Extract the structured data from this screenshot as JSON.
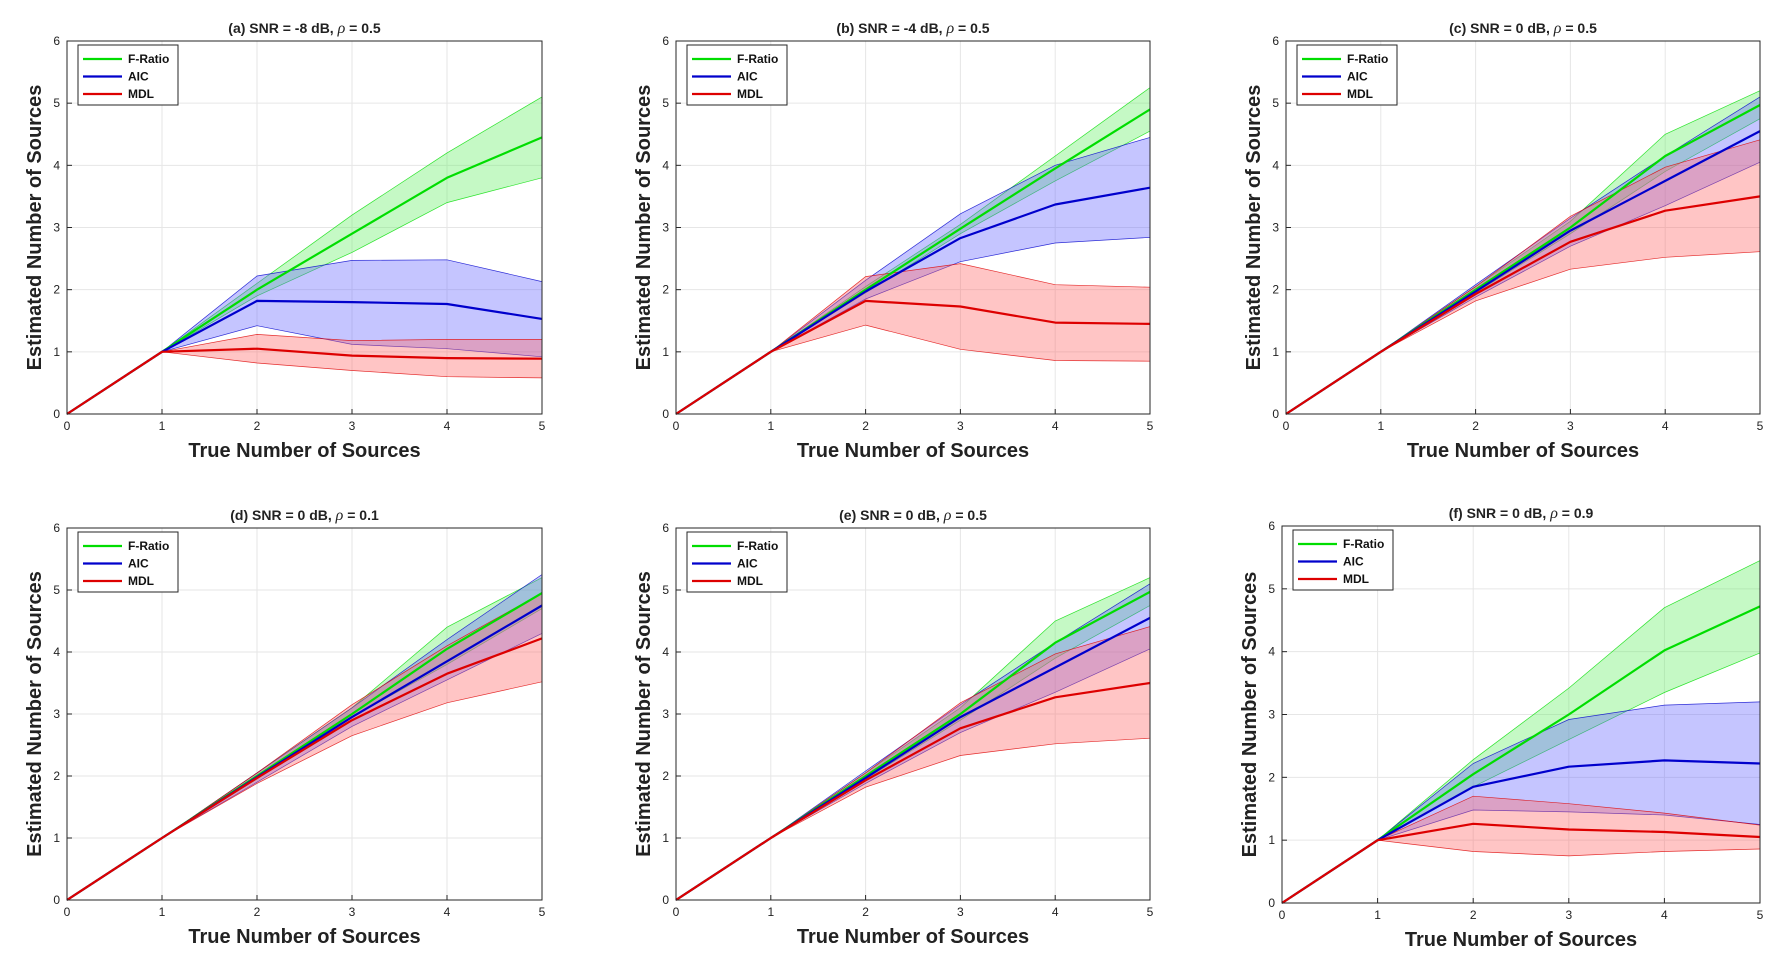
{
  "figure": {
    "x_label": "True Number of Sources",
    "y_label": "Estimated Number of Sources",
    "legend": [
      "F-Ratio",
      "AIC",
      "MDL"
    ],
    "colors": {
      "F-Ratio": "#00dd00",
      "AIC": "#0000cc",
      "MDL": "#dd0000"
    },
    "band_colors": {
      "F-Ratio": "#66ee66",
      "AIC": "#6666ff",
      "MDL": "#ff6666"
    }
  },
  "chart_data": [
    {
      "type": "line",
      "title_prefix": "(a) SNR = -8 dB, ",
      "title_symbol": "ρ",
      "title_suffix": " = 0.5",
      "xlabel": "True Number of Sources",
      "ylabel": "Estimated Number of Sources",
      "x": [
        0,
        1,
        2,
        3,
        4,
        5
      ],
      "xlim": [
        0,
        5
      ],
      "ylim": [
        0,
        6
      ],
      "xticks": [
        "0",
        "1",
        "2",
        "3",
        "4",
        "5"
      ],
      "yticks": [
        "0",
        "1",
        "2",
        "3",
        "4",
        "5",
        "6"
      ],
      "series": [
        {
          "name": "F-Ratio",
          "mean": [
            0,
            1,
            2.0,
            2.9,
            3.8,
            4.45
          ],
          "lower": [
            0,
            1,
            1.9,
            2.6,
            3.4,
            3.8
          ],
          "upper": [
            0,
            1,
            2.1,
            3.2,
            4.2,
            5.1
          ]
        },
        {
          "name": "AIC",
          "mean": [
            0,
            1,
            1.82,
            1.8,
            1.77,
            1.53
          ],
          "lower": [
            0,
            1,
            1.42,
            1.12,
            1.05,
            0.92
          ],
          "upper": [
            0,
            1,
            2.22,
            2.47,
            2.48,
            2.13
          ]
        },
        {
          "name": "MDL",
          "mean": [
            0,
            1,
            1.05,
            0.94,
            0.9,
            0.89
          ],
          "lower": [
            0,
            1,
            0.82,
            0.7,
            0.6,
            0.58
          ],
          "upper": [
            0,
            1,
            1.28,
            1.18,
            1.2,
            1.2
          ]
        }
      ]
    },
    {
      "type": "line",
      "title_prefix": "(b) SNR = -4 dB, ",
      "title_symbol": "ρ",
      "title_suffix": " = 0.5",
      "xlabel": "True Number of Sources",
      "ylabel": "Estimated Number of Sources",
      "x": [
        0,
        1,
        2,
        3,
        4,
        5
      ],
      "xlim": [
        0,
        5
      ],
      "ylim": [
        0,
        6
      ],
      "xticks": [
        "0",
        "1",
        "2",
        "3",
        "4",
        "5"
      ],
      "yticks": [
        "0",
        "1",
        "2",
        "3",
        "4",
        "5",
        "6"
      ],
      "series": [
        {
          "name": "F-Ratio",
          "mean": [
            0,
            1,
            2.0,
            2.98,
            3.95,
            4.9
          ],
          "lower": [
            0,
            1,
            1.95,
            2.9,
            3.75,
            4.55
          ],
          "upper": [
            0,
            1,
            2.05,
            3.05,
            4.15,
            5.25
          ]
        },
        {
          "name": "AIC",
          "mean": [
            0,
            1,
            1.97,
            2.83,
            3.37,
            3.64
          ],
          "lower": [
            0,
            1,
            1.85,
            2.45,
            2.75,
            2.84
          ],
          "upper": [
            0,
            1,
            2.15,
            3.22,
            4.0,
            4.45
          ]
        },
        {
          "name": "MDL",
          "mean": [
            0,
            1,
            1.82,
            1.73,
            1.47,
            1.45
          ],
          "lower": [
            0,
            1,
            1.43,
            1.04,
            0.86,
            0.85
          ],
          "upper": [
            0,
            1,
            2.21,
            2.42,
            2.08,
            2.04
          ]
        }
      ]
    },
    {
      "type": "line",
      "title_prefix": "(c) SNR = 0 dB, ",
      "title_symbol": "ρ",
      "title_suffix": " = 0.5",
      "xlabel": "True Number of Sources",
      "ylabel": "Estimated Number of Sources",
      "x": [
        0,
        1,
        2,
        3,
        4,
        5
      ],
      "xlim": [
        0,
        5
      ],
      "ylim": [
        0,
        6
      ],
      "xticks": [
        "0",
        "1",
        "2",
        "3",
        "4",
        "5"
      ],
      "yticks": [
        "0",
        "1",
        "2",
        "3",
        "4",
        "5",
        "6"
      ],
      "series": [
        {
          "name": "F-Ratio",
          "mean": [
            0,
            1,
            2.0,
            3.0,
            4.15,
            4.97
          ],
          "lower": [
            0,
            1,
            1.95,
            2.9,
            3.9,
            4.75
          ],
          "upper": [
            0,
            1,
            2.05,
            3.1,
            4.5,
            5.2
          ]
        },
        {
          "name": "AIC",
          "mean": [
            0,
            1,
            1.97,
            2.95,
            3.75,
            4.55
          ],
          "lower": [
            0,
            1,
            1.88,
            2.7,
            3.35,
            4.05
          ],
          "upper": [
            0,
            1,
            2.08,
            3.15,
            4.15,
            5.1
          ]
        },
        {
          "name": "MDL",
          "mean": [
            0,
            1,
            1.93,
            2.77,
            3.27,
            3.5
          ],
          "lower": [
            0,
            1,
            1.82,
            2.33,
            2.52,
            2.61
          ],
          "upper": [
            0,
            1,
            2.05,
            3.18,
            3.97,
            4.41
          ]
        }
      ]
    },
    {
      "type": "line",
      "title_prefix": "(d) SNR = 0 dB, ",
      "title_symbol": "ρ",
      "title_suffix": " = 0.1",
      "xlabel": "True Number of Sources",
      "ylabel": "Estimated Number of Sources",
      "x": [
        0,
        1,
        2,
        3,
        4,
        5
      ],
      "xlim": [
        0,
        5
      ],
      "ylim": [
        0,
        6
      ],
      "xticks": [
        "0",
        "1",
        "2",
        "3",
        "4",
        "5"
      ],
      "yticks": [
        "0",
        "1",
        "2",
        "3",
        "4",
        "5",
        "6"
      ],
      "series": [
        {
          "name": "F-Ratio",
          "mean": [
            0,
            1,
            2.0,
            3.0,
            4.05,
            4.95
          ],
          "lower": [
            0,
            1,
            1.95,
            2.95,
            3.8,
            4.7
          ],
          "upper": [
            0,
            1,
            2.05,
            3.1,
            4.4,
            5.2
          ]
        },
        {
          "name": "AIC",
          "mean": [
            0,
            1,
            1.98,
            2.95,
            3.85,
            4.75
          ],
          "lower": [
            0,
            1,
            1.9,
            2.8,
            3.55,
            4.3
          ],
          "upper": [
            0,
            1,
            2.05,
            3.1,
            4.2,
            5.25
          ]
        },
        {
          "name": "MDL",
          "mean": [
            0,
            1,
            1.97,
            2.9,
            3.65,
            4.22
          ],
          "lower": [
            0,
            1,
            1.88,
            2.65,
            3.18,
            3.52
          ],
          "upper": [
            0,
            1,
            2.05,
            3.15,
            4.1,
            4.95
          ]
        }
      ]
    },
    {
      "type": "line",
      "title_prefix": "(e) SNR = 0 dB, ",
      "title_symbol": "ρ",
      "title_suffix": " = 0.5",
      "xlabel": "True Number of Sources",
      "ylabel": "Estimated Number of Sources",
      "x": [
        0,
        1,
        2,
        3,
        4,
        5
      ],
      "xlim": [
        0,
        5
      ],
      "ylim": [
        0,
        6
      ],
      "xticks": [
        "0",
        "1",
        "2",
        "3",
        "4",
        "5"
      ],
      "yticks": [
        "0",
        "1",
        "2",
        "3",
        "4",
        "5",
        "6"
      ],
      "series": [
        {
          "name": "F-Ratio",
          "mean": [
            0,
            1,
            2.0,
            3.0,
            4.15,
            4.97
          ],
          "lower": [
            0,
            1,
            1.95,
            2.9,
            3.9,
            4.75
          ],
          "upper": [
            0,
            1,
            2.05,
            3.1,
            4.5,
            5.2
          ]
        },
        {
          "name": "AIC",
          "mean": [
            0,
            1,
            1.97,
            2.95,
            3.75,
            4.55
          ],
          "lower": [
            0,
            1,
            1.88,
            2.7,
            3.35,
            4.05
          ],
          "upper": [
            0,
            1,
            2.08,
            3.15,
            4.15,
            5.1
          ]
        },
        {
          "name": "MDL",
          "mean": [
            0,
            1,
            1.93,
            2.77,
            3.27,
            3.5
          ],
          "lower": [
            0,
            1,
            1.82,
            2.33,
            2.52,
            2.61
          ],
          "upper": [
            0,
            1,
            2.05,
            3.18,
            3.97,
            4.41
          ]
        }
      ]
    },
    {
      "type": "line",
      "title_prefix": "(f) SNR = 0 dB, ",
      "title_symbol": "ρ",
      "title_suffix": " = 0.9",
      "xlabel": "True Number of Sources",
      "ylabel": "Estimated Number of Sources",
      "x": [
        0,
        1,
        2,
        3,
        4,
        5
      ],
      "xlim": [
        0,
        5
      ],
      "ylim": [
        0,
        6
      ],
      "xticks": [
        "0",
        "1",
        "2",
        "3",
        "4",
        "5"
      ],
      "yticks": [
        "0",
        "1",
        "2",
        "3",
        "4",
        "5",
        "6"
      ],
      "series": [
        {
          "name": "F-Ratio",
          "mean": [
            0,
            1,
            2.05,
            3.0,
            4.02,
            4.72
          ],
          "lower": [
            0,
            1,
            1.85,
            2.6,
            3.35,
            3.98
          ],
          "upper": [
            0,
            1,
            2.28,
            3.42,
            4.7,
            5.45
          ]
        },
        {
          "name": "AIC",
          "mean": [
            0,
            1,
            1.85,
            2.17,
            2.27,
            2.22
          ],
          "lower": [
            0,
            1,
            1.48,
            1.45,
            1.4,
            1.25
          ],
          "upper": [
            0,
            1,
            2.22,
            2.92,
            3.15,
            3.2
          ]
        },
        {
          "name": "MDL",
          "mean": [
            0,
            1,
            1.26,
            1.17,
            1.13,
            1.05
          ],
          "lower": [
            0,
            1,
            0.82,
            0.75,
            0.82,
            0.86
          ],
          "upper": [
            0,
            1,
            1.7,
            1.58,
            1.43,
            1.24
          ]
        }
      ]
    }
  ]
}
